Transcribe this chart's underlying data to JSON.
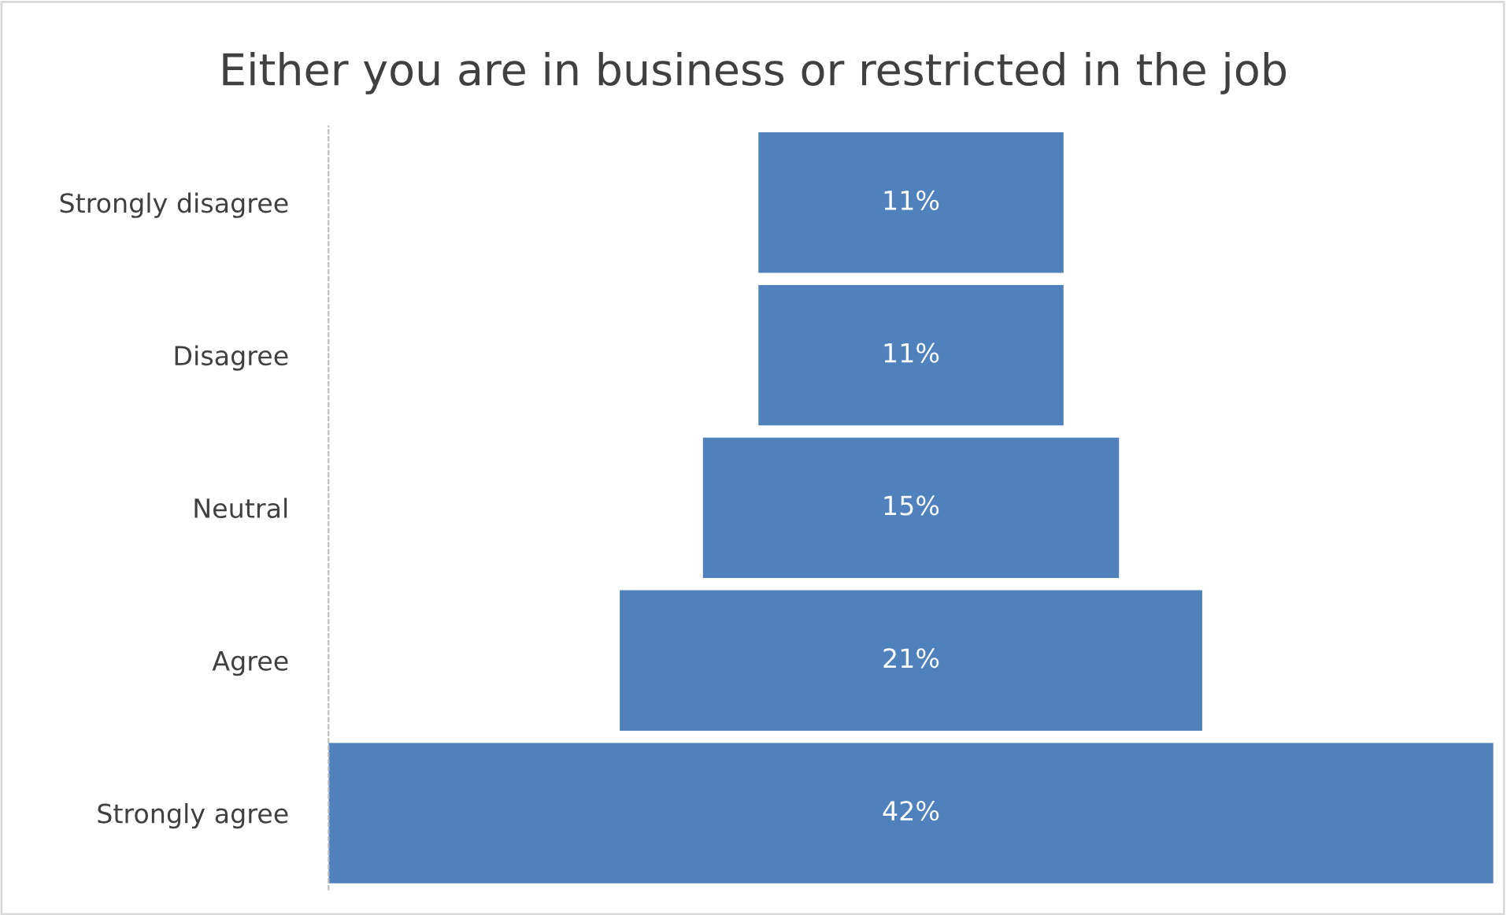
{
  "chart_data": {
    "type": "other",
    "title": "Either you are in business or restricted in the job",
    "categories": [
      "Strongly disagree",
      "Disagree",
      "Neutral",
      "Agree",
      "Strongly agree"
    ],
    "values": [
      11,
      11,
      15,
      21,
      42
    ],
    "value_labels": [
      "11%",
      "11%",
      "15%",
      "21%",
      "42%"
    ],
    "color": "#4f81bd"
  }
}
